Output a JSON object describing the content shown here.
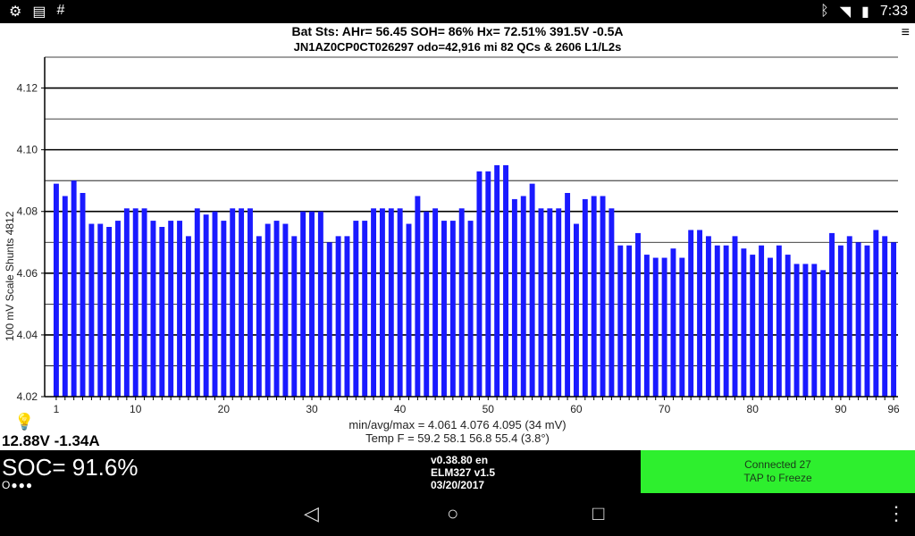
{
  "status_bar": {
    "time": "7:33",
    "left_icons": [
      "gear-icon",
      "app-icon",
      "hash-icon"
    ],
    "right_icons": [
      "bluetooth-icon",
      "wifi-icon",
      "battery-icon"
    ]
  },
  "header": {
    "line1": "Bat Sts:  AHr= 56.45  SOH= 86%   Hx= 72.51%   391.5V -0.5A",
    "line2": "JN1AZ0CP0CT026297 odo=42,916 mi  82 QCs & 2606 L1/L2s"
  },
  "stats": {
    "minavgmax": "min/avg/max = 4.061 4.076 4.095  (34 mV)",
    "temp": "Temp F = 59.2  58.1  56.8  55.4  (3.8°)"
  },
  "bat12": "12.88V -1.34A",
  "bottom": {
    "soc": "SOC= 91.6%",
    "dots": "O●●●",
    "version": "v0.38.80 en",
    "elm": "ELM327 v1.5",
    "date": "03/20/2017",
    "connect_line1": "Connected 27",
    "connect_line2": "TAP to Freeze"
  },
  "colors": {
    "bar": "#1a1aff",
    "connect_bg": "#2eef2e"
  },
  "chart_data": {
    "type": "bar",
    "ylabel": "100 mV Scale   Shunts 4812",
    "ylim": [
      4.02,
      4.13
    ],
    "yticks": [
      "4.02",
      "4.04",
      "4.06",
      "4.08",
      "4.10",
      "4.12"
    ],
    "ytick_values": [
      4.02,
      4.04,
      4.06,
      4.08,
      4.1,
      4.12
    ],
    "xticks": [
      "1",
      "10",
      "20",
      "30",
      "40",
      "50",
      "60",
      "70",
      "80",
      "90",
      "96"
    ],
    "xtick_values": [
      1,
      10,
      20,
      30,
      40,
      50,
      60,
      70,
      80,
      90,
      96
    ],
    "x": [
      1,
      2,
      3,
      4,
      5,
      6,
      7,
      8,
      9,
      10,
      11,
      12,
      13,
      14,
      15,
      16,
      17,
      18,
      19,
      20,
      21,
      22,
      23,
      24,
      25,
      26,
      27,
      28,
      29,
      30,
      31,
      32,
      33,
      34,
      35,
      36,
      37,
      38,
      39,
      40,
      41,
      42,
      43,
      44,
      45,
      46,
      47,
      48,
      49,
      50,
      51,
      52,
      53,
      54,
      55,
      56,
      57,
      58,
      59,
      60,
      61,
      62,
      63,
      64,
      65,
      66,
      67,
      68,
      69,
      70,
      71,
      72,
      73,
      74,
      75,
      76,
      77,
      78,
      79,
      80,
      81,
      82,
      83,
      84,
      85,
      86,
      87,
      88,
      89,
      90,
      91,
      92,
      93,
      94,
      95,
      96
    ],
    "values": [
      4.089,
      4.085,
      4.09,
      4.086,
      4.076,
      4.076,
      4.075,
      4.077,
      4.081,
      4.081,
      4.081,
      4.077,
      4.075,
      4.077,
      4.077,
      4.072,
      4.081,
      4.079,
      4.08,
      4.077,
      4.081,
      4.081,
      4.081,
      4.072,
      4.076,
      4.077,
      4.076,
      4.072,
      4.08,
      4.08,
      4.08,
      4.07,
      4.072,
      4.072,
      4.077,
      4.077,
      4.081,
      4.081,
      4.081,
      4.081,
      4.076,
      4.085,
      4.08,
      4.081,
      4.077,
      4.077,
      4.081,
      4.077,
      4.093,
      4.093,
      4.095,
      4.095,
      4.084,
      4.085,
      4.089,
      4.081,
      4.081,
      4.081,
      4.086,
      4.076,
      4.084,
      4.085,
      4.085,
      4.081,
      4.069,
      4.069,
      4.073,
      4.066,
      4.065,
      4.065,
      4.068,
      4.065,
      4.074,
      4.074,
      4.072,
      4.069,
      4.069,
      4.072,
      4.068,
      4.066,
      4.069,
      4.065,
      4.069,
      4.066,
      4.063,
      4.063,
      4.063,
      4.061,
      4.073,
      4.069,
      4.072,
      4.07,
      4.069,
      4.074,
      4.072,
      4.07
    ]
  }
}
